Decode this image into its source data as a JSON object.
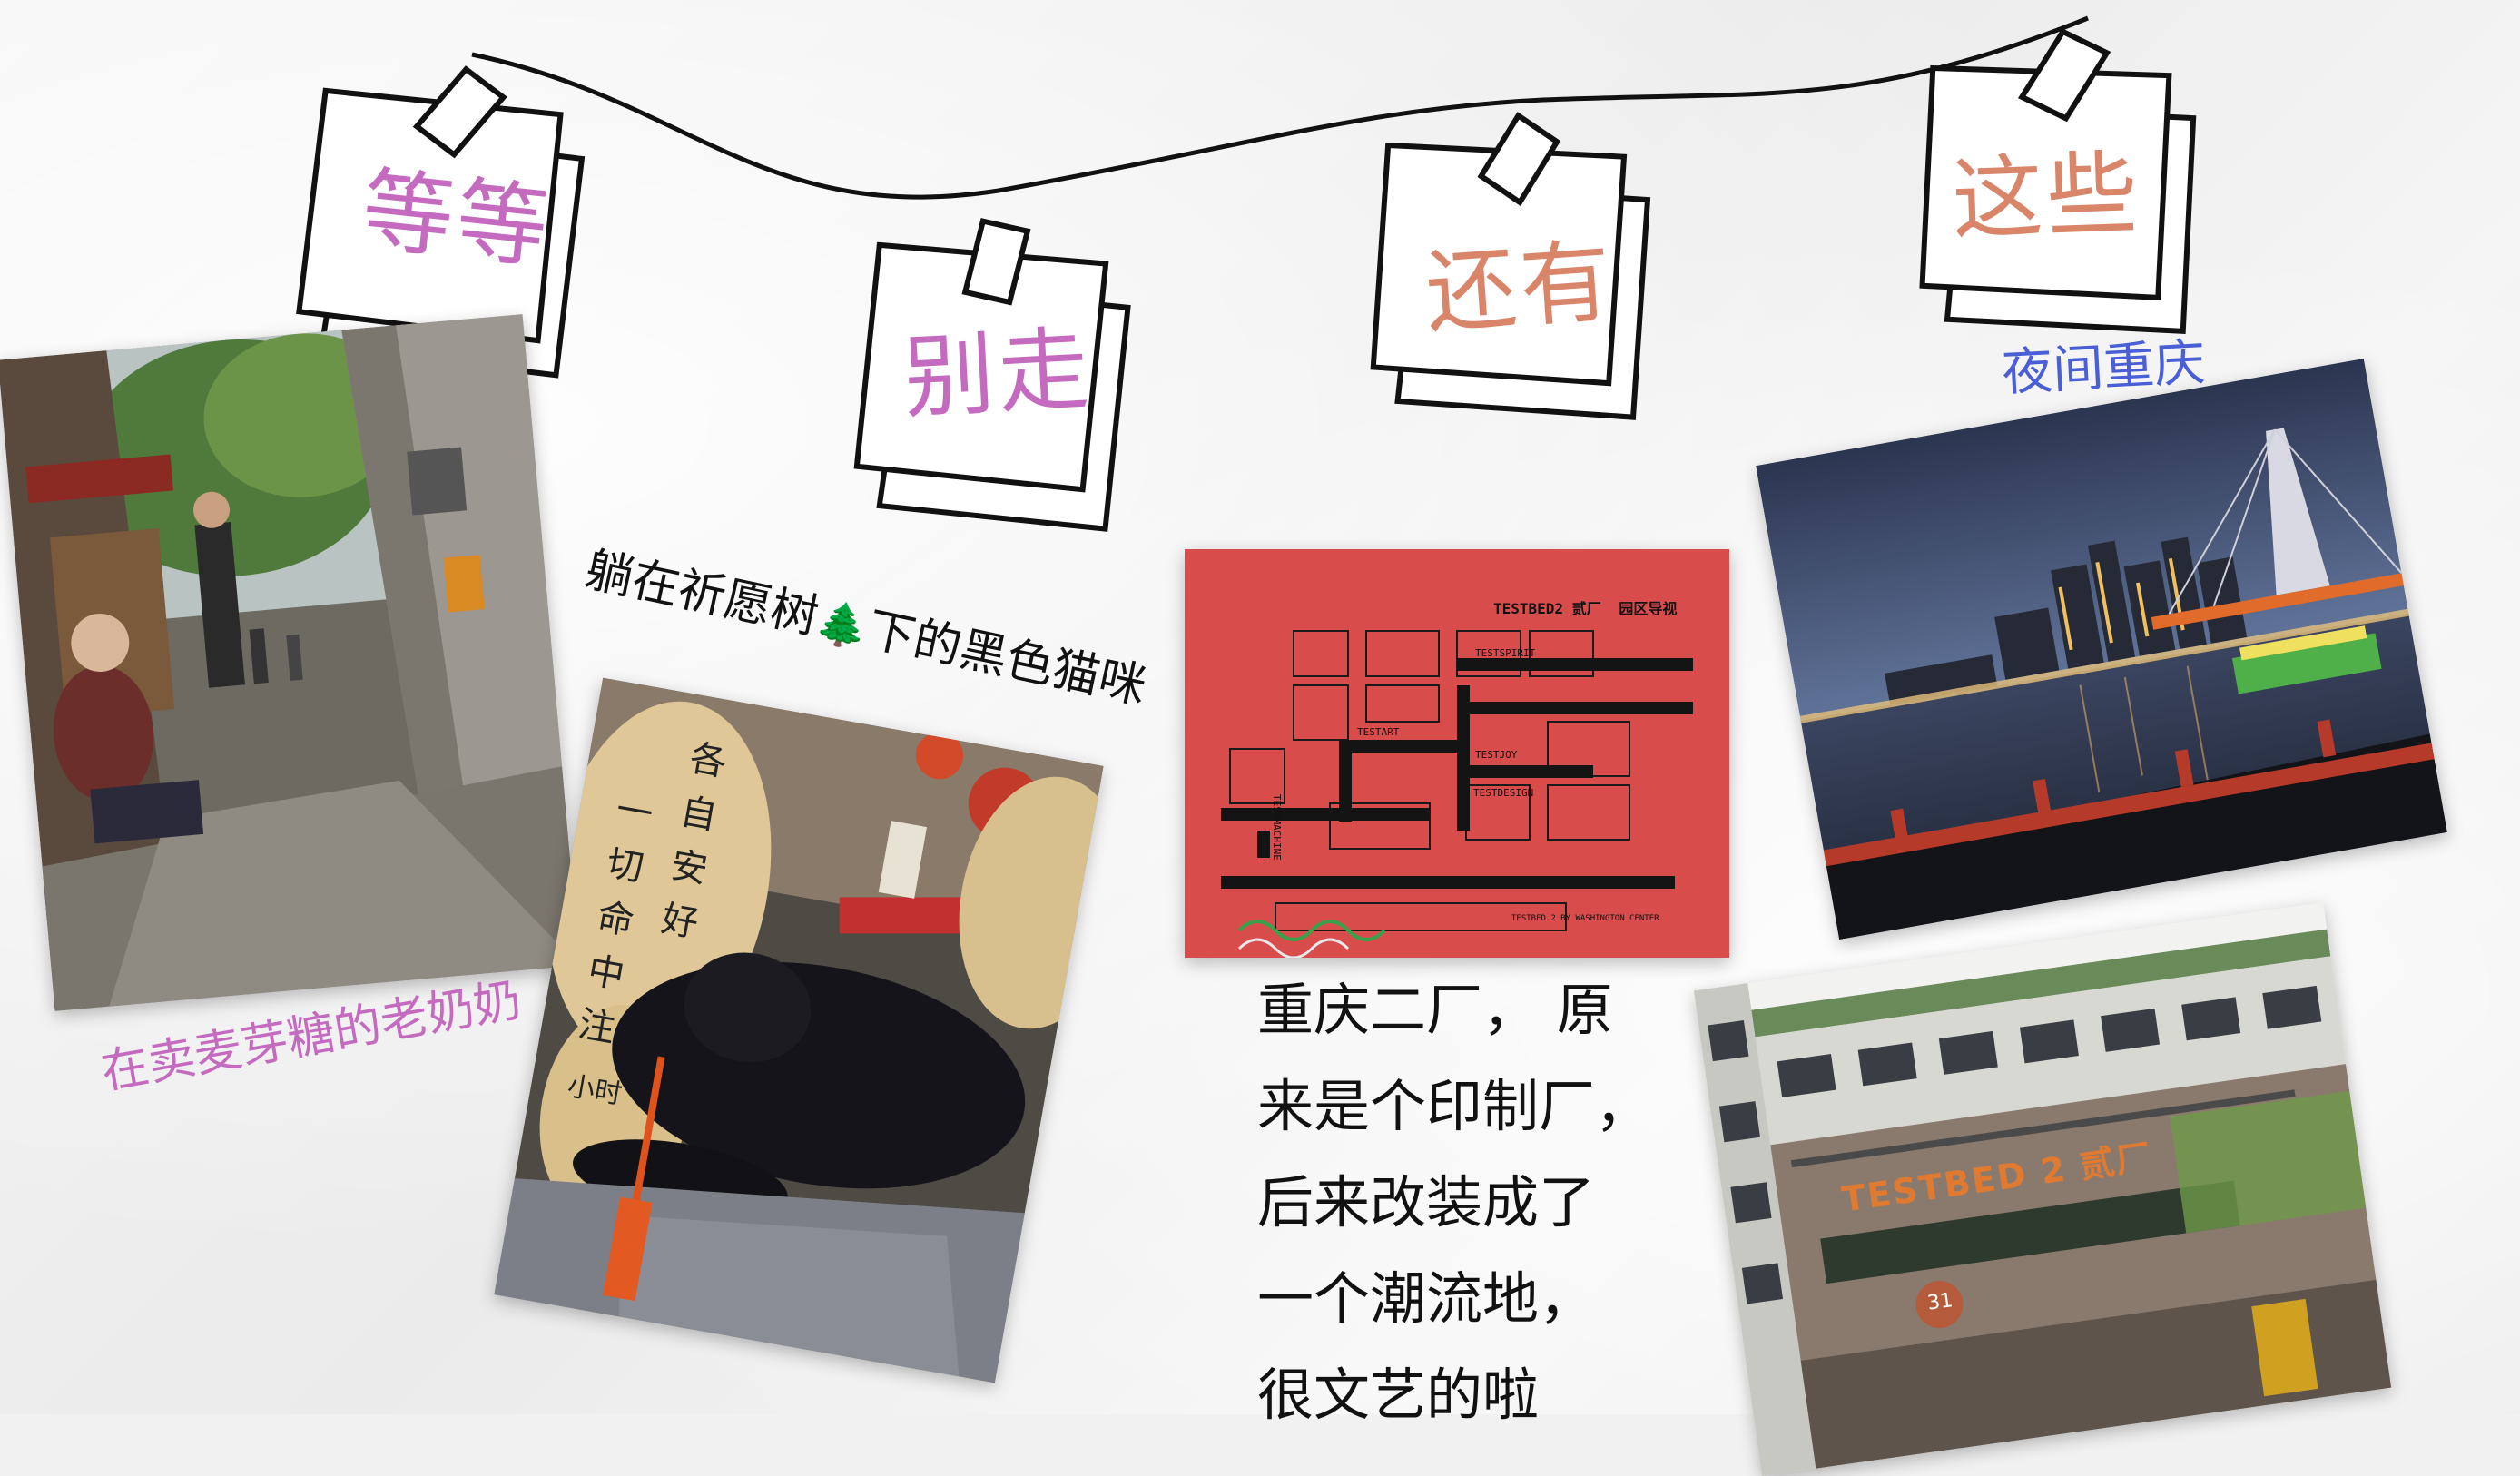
{
  "notes": [
    {
      "label": "等等",
      "color": "#c46bc0"
    },
    {
      "label": "别走",
      "color": "#c46bc0"
    },
    {
      "label": "还有",
      "color": "#d9856a"
    },
    {
      "label": "这些",
      "color": "#d9856a"
    }
  ],
  "captions": {
    "grandma": "在卖麦芽糖的老奶奶",
    "cat_pre": "躺在祈愿树",
    "cat_post": "下的黑色猫咪",
    "night": "夜间重庆"
  },
  "tree_emoji": "🌲",
  "factory_text": [
    "重庆二厂， 原",
    "来是个印制厂，",
    "后来改装成了",
    "一个潮流地，",
    "很文艺的啦"
  ],
  "wish_card": {
    "left": [
      "一",
      "切",
      "命",
      "中",
      "注"
    ],
    "right": [
      "各",
      "自",
      "安",
      "好"
    ],
    "extra": "小时"
  },
  "map_board": {
    "title": "TESTBED2 贰厂",
    "subtitle": "园区导视",
    "zones": [
      "TESTART",
      "TESTSPIRIT",
      "TESTJOY",
      "TESTDESIGN",
      "TESTMACHINE"
    ],
    "footer": "TESTBED 2 BY WASHINGTON CENTER"
  },
  "building_sign": "TESTBED 2 贰厂",
  "building_number": "31",
  "colors": {
    "pink": "#c46bc0",
    "peach": "#d9856a",
    "blue": "#4a5fd6",
    "ink": "#111111"
  }
}
